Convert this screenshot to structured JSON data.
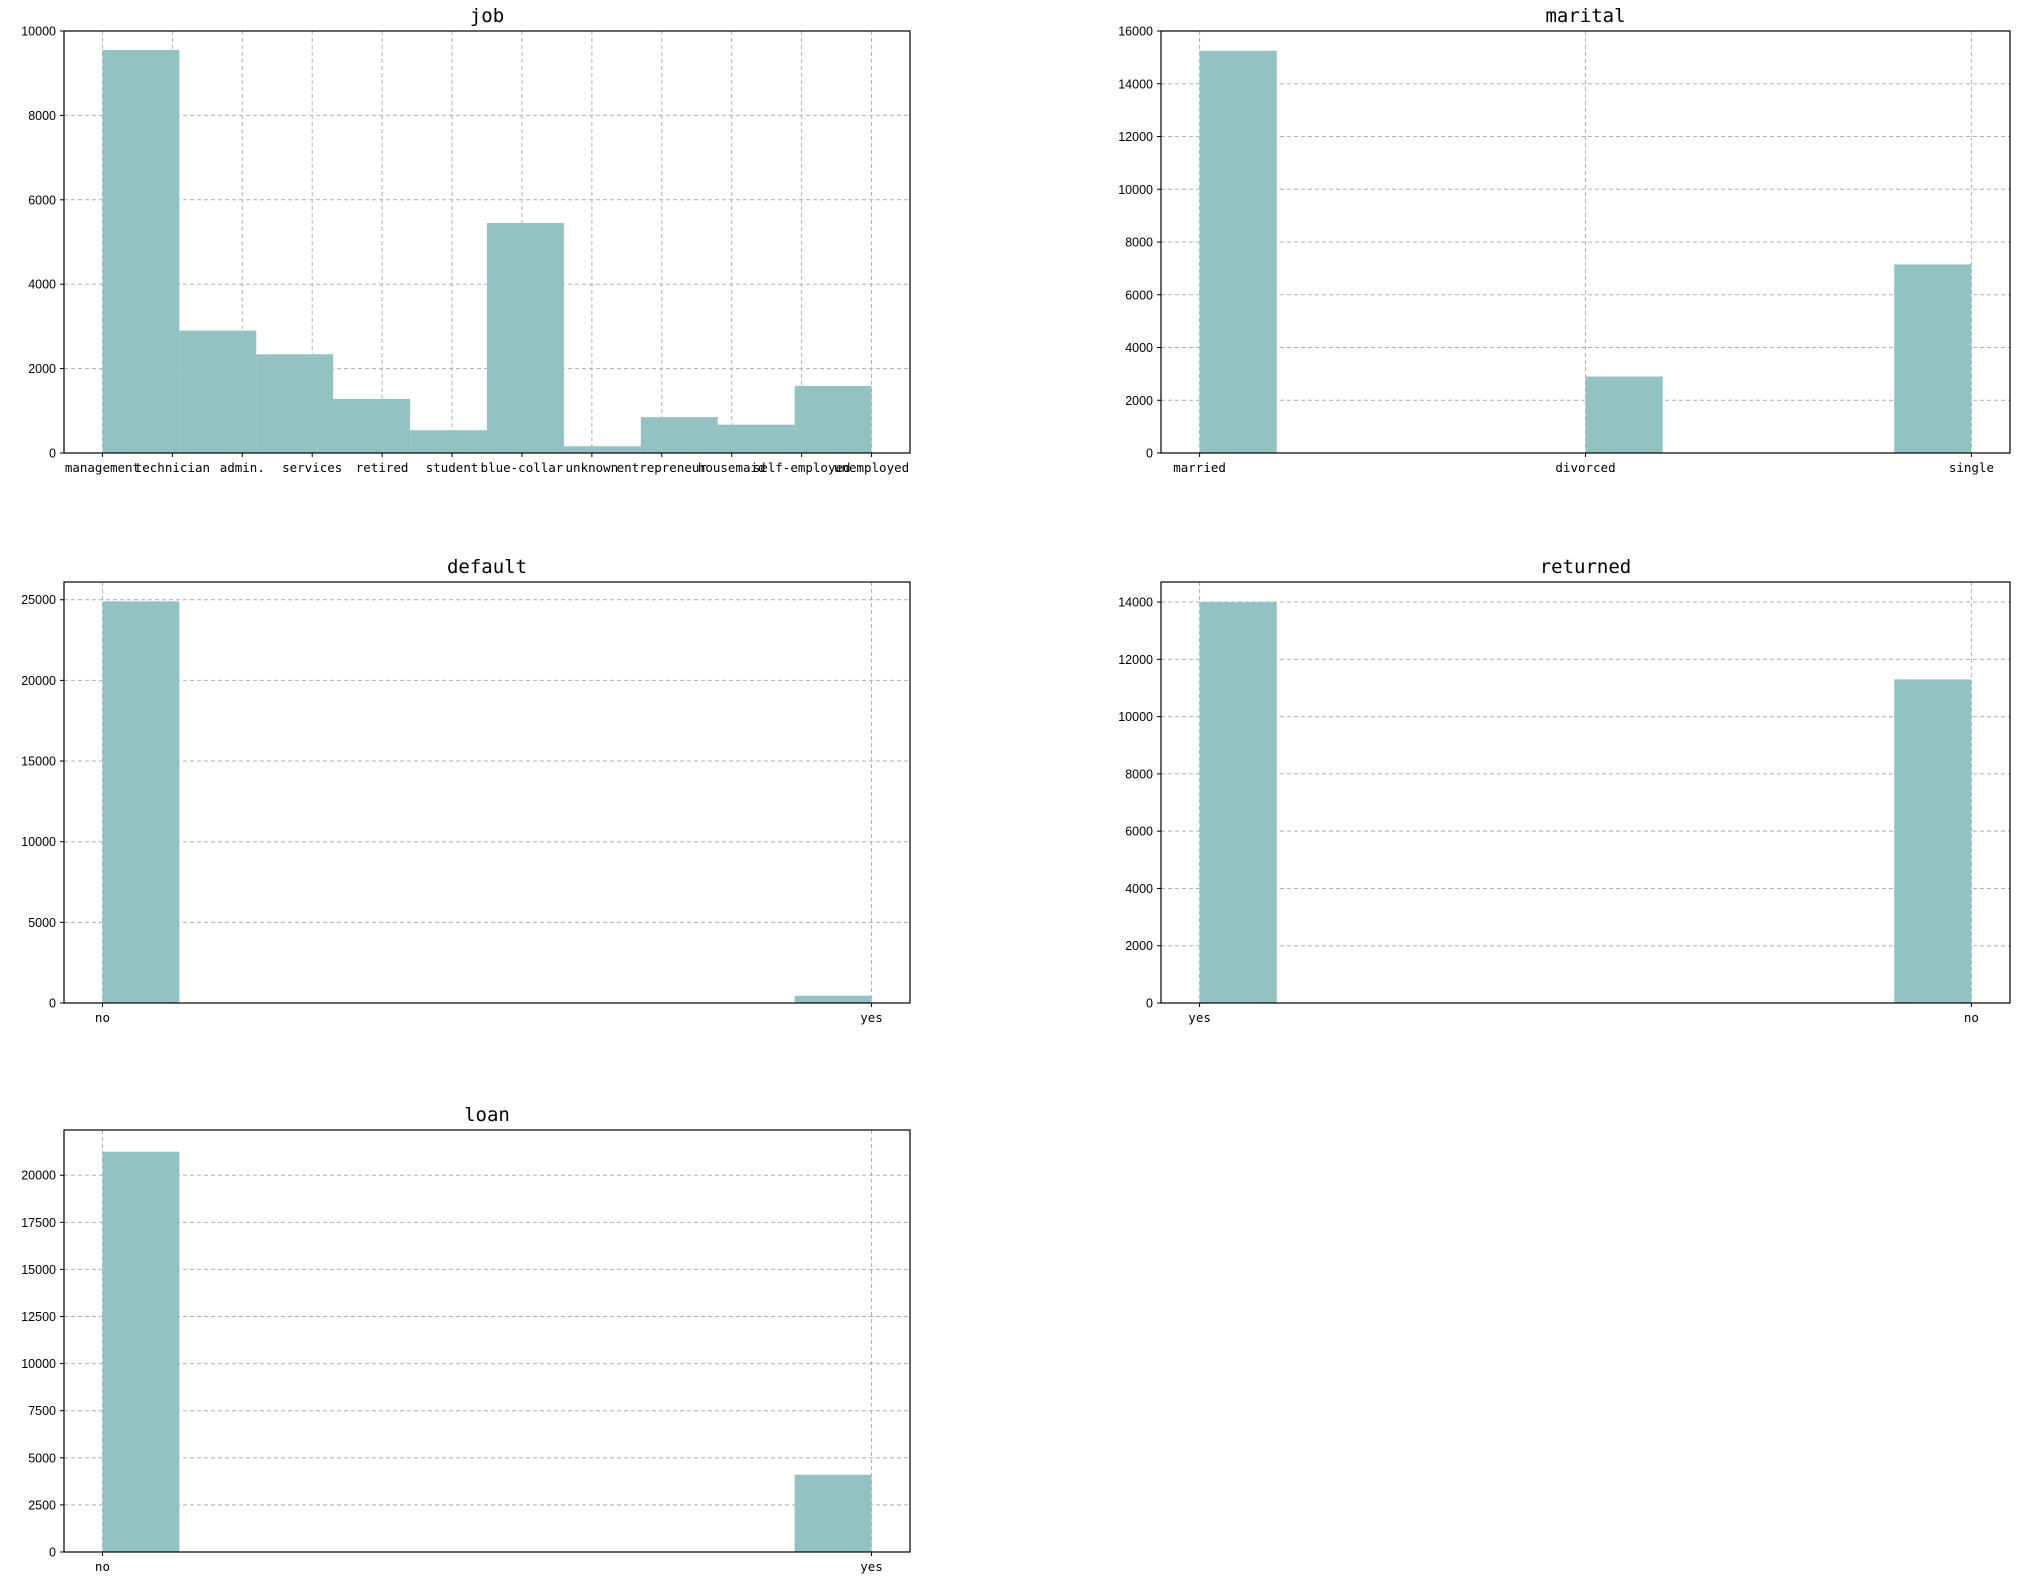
{
  "style": {
    "bar_color": "#92c2c2",
    "grid_color": "#b0b0b0"
  },
  "chart_data": [
    {
      "type": "bar",
      "title": "job",
      "categories": [
        "management",
        "technician",
        "admin.",
        "services",
        "retired",
        "student",
        "blue-collar",
        "unknown",
        "entrepreneur",
        "housemaid",
        "self-employed",
        "unemployed"
      ],
      "bins": [
        {
          "range": [
            0,
            1.1
          ],
          "value": 9550
        },
        {
          "range": [
            1.1,
            2.2
          ],
          "value": 2900
        },
        {
          "range": [
            2.2,
            3.3
          ],
          "value": 2340
        },
        {
          "range": [
            3.3,
            4.4
          ],
          "value": 1280
        },
        {
          "range": [
            4.4,
            5.5
          ],
          "value": 540
        },
        {
          "range": [
            5.5,
            6.6
          ],
          "value": 5450
        },
        {
          "range": [
            6.6,
            7.7
          ],
          "value": 160
        },
        {
          "range": [
            7.7,
            8.8
          ],
          "value": 850
        },
        {
          "range": [
            8.8,
            9.9
          ],
          "value": 670
        },
        {
          "range": [
            9.9,
            11.0
          ],
          "value": 1590
        }
      ],
      "xlim": [
        -0.55,
        11.55
      ],
      "ylim": [
        0,
        10000
      ],
      "yticks": [
        0,
        2000,
        4000,
        6000,
        8000,
        10000
      ],
      "grid": true
    },
    {
      "type": "bar",
      "title": "marital",
      "categories": [
        "married",
        "divorced",
        "single"
      ],
      "bins": [
        {
          "range": [
            0,
            0.2
          ],
          "value": 15250
        },
        {
          "range": [
            1.0,
            1.2
          ],
          "value": 2900
        },
        {
          "range": [
            1.8,
            2.0
          ],
          "value": 7150
        }
      ],
      "xlim": [
        -0.1,
        2.1
      ],
      "ylim": [
        0,
        16000
      ],
      "yticks": [
        0,
        2000,
        4000,
        6000,
        8000,
        10000,
        12000,
        14000,
        16000
      ],
      "grid": true
    },
    {
      "type": "bar",
      "title": "default",
      "categories": [
        "no",
        "yes"
      ],
      "bins": [
        {
          "range": [
            0,
            0.1
          ],
          "value": 24900
        },
        {
          "range": [
            0.9,
            1.0
          ],
          "value": 450
        }
      ],
      "xlim": [
        -0.05,
        1.05
      ],
      "ylim": [
        0,
        26100
      ],
      "yticks": [
        0,
        5000,
        10000,
        15000,
        20000,
        25000
      ],
      "grid": true
    },
    {
      "type": "bar",
      "title": "returned",
      "categories": [
        "yes",
        "no"
      ],
      "bins": [
        {
          "range": [
            0,
            0.1
          ],
          "value": 14000
        },
        {
          "range": [
            0.9,
            1.0
          ],
          "value": 11300
        }
      ],
      "xlim": [
        -0.05,
        1.05
      ],
      "ylim": [
        0,
        14700
      ],
      "yticks": [
        0,
        2000,
        4000,
        6000,
        8000,
        10000,
        12000,
        14000
      ],
      "grid": true
    },
    {
      "type": "bar",
      "title": "loan",
      "categories": [
        "no",
        "yes"
      ],
      "bins": [
        {
          "range": [
            0,
            0.1
          ],
          "value": 21250
        },
        {
          "range": [
            0.9,
            1.0
          ],
          "value": 4100
        }
      ],
      "xlim": [
        -0.05,
        1.05
      ],
      "ylim": [
        0,
        22400
      ],
      "yticks": [
        0,
        2500,
        5000,
        7500,
        10000,
        12500,
        15000,
        17500,
        20000
      ],
      "grid": true
    }
  ]
}
